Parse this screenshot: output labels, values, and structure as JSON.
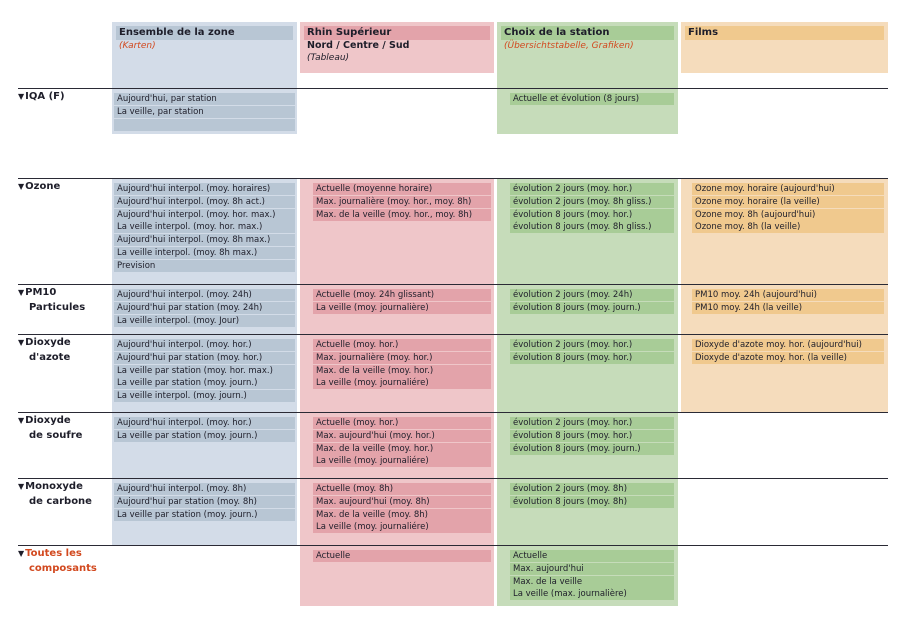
{
  "columns": [
    {
      "title": "Ensemble de la zone",
      "subtitle": "",
      "link": "(Karten)"
    },
    {
      "title": "Rhin Supérieur",
      "subtitle": "Nord / Centre / Sud",
      "link": "(Tableau)"
    },
    {
      "title": "Choix de la station",
      "subtitle": "",
      "link": "(Übersichtstabelle, Grafiken)"
    },
    {
      "title": "Films",
      "subtitle": "",
      "link": ""
    }
  ],
  "rows": [
    {
      "label1": "IQA (F)",
      "label2": "",
      "c1": [
        "Aujourd'hui, par station",
        "La veille, par station"
      ],
      "c2": [],
      "c3": [
        "Actuelle et évolution (8 jours)"
      ],
      "c4": []
    },
    {
      "label1": "Ozone",
      "label2": "",
      "c1": [
        "Aujourd'hui interpol. (moy. horaires)",
        "Aujourd'hui interpol. (moy. 8h act.)",
        "Aujourd'hui interpol. (moy. hor. max.)",
        "La veille interpol. (moy. hor. max.)",
        "Aujourd'hui interpol. (moy. 8h max.)",
        "La veille interpol. (moy. 8h max.)",
        "Prevision"
      ],
      "c2": [
        "Actuelle (moyenne horaire)",
        "Max. journalière (moy. hor., moy. 8h)",
        "Max. de la veille (moy. hor., moy. 8h)"
      ],
      "c3": [
        "évolution 2 jours (moy. hor.)",
        "évolution 2 jours (moy. 8h gliss.)",
        "évolution 8 jours (moy. hor.)",
        "évolution 8 jours (moy. 8h gliss.)"
      ],
      "c4": [
        "Ozone moy. horaire (aujourd'hui)",
        "Ozone moy. horaire (la veille)",
        "Ozone moy. 8h (aujourd'hui)",
        "Ozone moy. 8h (la veille)"
      ]
    },
    {
      "label1": "PM10",
      "label2": "Particules",
      "c1": [
        "Aujourd'hui interpol. (moy. 24h)",
        "Aujourd'hui par station (moy. 24h)",
        "La veille interpol. (moy. Jour)"
      ],
      "c2": [
        "Actuelle (moy. 24h glissant)",
        "La veille (moy. journalière)"
      ],
      "c3": [
        "évolution 2 jours (moy. 24h)",
        "évolution 8 jours (moy. journ.)"
      ],
      "c4": [
        "PM10 moy. 24h (aujourd'hui)",
        "PM10 moy. 24h (la veille)"
      ]
    },
    {
      "label1": "Dioxyde",
      "label2": "d'azote",
      "c1": [
        "Aujourd'hui interpol. (moy. hor.)",
        "Aujourd'hui par station (moy. hor.)",
        "La veille par station (moy. hor. max.)",
        "La veille par station (moy. journ.)",
        "La veille interpol. (moy. journ.)"
      ],
      "c2": [
        "Actuelle (moy. hor.)",
        "Max. journalière (moy. hor.)",
        "Max. de la veille (moy. hor.)",
        "La veille (moy. journaliére)"
      ],
      "c3": [
        "évolution 2 jours (moy. hor.)",
        "évolution 8 jours (moy. hor.)"
      ],
      "c4": [
        "Dioxyde d'azote moy. hor. (aujourd'hui)",
        "Dioxyde d'azote moy. hor. (la veille)"
      ]
    },
    {
      "label1": "Dioxyde",
      "label2": "de soufre",
      "c1": [
        "Aujourd'hui interpol. (moy. hor.)",
        "La veille par station (moy. journ.)"
      ],
      "c2": [
        "Actuelle (moy. hor.)",
        "Max. aujourd'hui (moy. hor.)",
        "Max. de la veille (moy. hor.)",
        "La veille (moy. journaliére)"
      ],
      "c3": [
        "évolution 2 jours (moy. hor.)",
        "évolution 8 jours (moy. hor.)",
        "évolution 8 jours (moy. journ.)"
      ],
      "c4": []
    },
    {
      "label1": "Monoxyde",
      "label2": "de carbone",
      "c1": [
        "Aujourd'hui interpol. (moy. 8h)",
        "Aujourd'hui par station (moy. 8h)",
        "La veille par station (moy. journ.)"
      ],
      "c2": [
        "Actuelle (moy. 8h)",
        "Max. aujourd'hui (moy. 8h)",
        "Max. de la veille (moy. 8h)",
        "La veille (moy. journaliére)"
      ],
      "c3": [
        "évolution 2 jours (moy. 8h)",
        "évolution 8 jours (moy. 8h)"
      ],
      "c4": []
    },
    {
      "label1": "Toutes les",
      "label2": "composants",
      "c1": [],
      "c2": [
        "Actuelle"
      ],
      "c3": [
        "Actuelle",
        "Max. aujourd'hui",
        "Max. de la veille",
        "La veille (max. journalière)"
      ],
      "c4": []
    }
  ],
  "colors": {
    "zone": "#d3dce8",
    "rhin": "#efc6c9",
    "station": "#c6dcba",
    "films": "#f5dcbc",
    "accent": "#d2491f"
  }
}
